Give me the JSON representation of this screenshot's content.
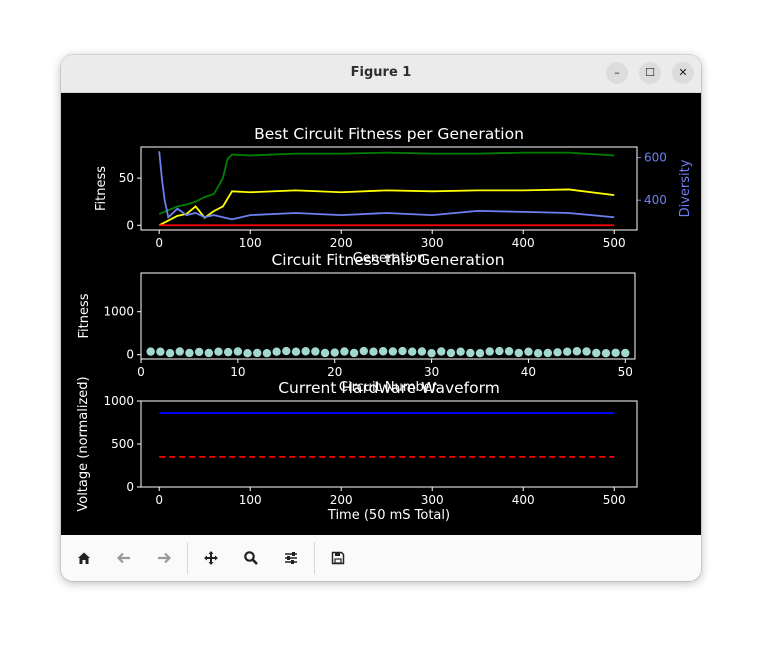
{
  "window": {
    "title": "Figure 1",
    "minimize": "–",
    "maximize": "☐",
    "close": "✕"
  },
  "toolbar": {
    "icons": [
      "home-icon",
      "back-arrow-icon",
      "forward-arrow-icon",
      "pan-move-icon",
      "zoom-icon",
      "configure-subplots-icon",
      "save-icon"
    ]
  },
  "colors": {
    "best": "#008000",
    "avg": "#ffff00",
    "worst": "#ff0000",
    "diversity": "#6e7ff0",
    "scatter": "#a2d9cf",
    "waveform": "#0000ff",
    "threshold": "#ff0000"
  },
  "chart_data": [
    {
      "type": "line",
      "title": "Best Circuit Fitness per Generation",
      "xlabel": "Generation",
      "ylabel": "Fitness",
      "y2label": "Diversity",
      "xlim": [
        -20,
        525
      ],
      "ylim": [
        -5,
        83
      ],
      "y2lim": [
        260,
        650
      ],
      "xticks": [
        0,
        100,
        200,
        300,
        400,
        500
      ],
      "yticks": [
        0,
        50
      ],
      "y2ticks": [
        400,
        600
      ],
      "series": [
        {
          "axis": "y",
          "color": "#008000",
          "x": [
            0,
            20,
            30,
            40,
            50,
            60,
            70,
            75,
            80,
            100,
            150,
            200,
            250,
            300,
            350,
            400,
            450,
            500
          ],
          "y": [
            12,
            20,
            22,
            25,
            30,
            33,
            50,
            70,
            75,
            74,
            76,
            76,
            77,
            76,
            76,
            77,
            77,
            74
          ]
        },
        {
          "axis": "y",
          "color": "#ffff00",
          "x": [
            0,
            20,
            30,
            40,
            50,
            60,
            70,
            75,
            80,
            100,
            150,
            200,
            250,
            300,
            350,
            400,
            450,
            500
          ],
          "y": [
            0,
            10,
            12,
            20,
            8,
            15,
            20,
            28,
            36,
            35,
            37,
            35,
            37,
            36,
            37,
            37,
            38,
            32
          ]
        },
        {
          "axis": "y",
          "color": "#ff0000",
          "x": [
            0,
            500
          ],
          "y": [
            0,
            0
          ]
        },
        {
          "axis": "y2",
          "color": "#6e7ff0",
          "x": [
            0,
            3,
            6,
            10,
            20,
            30,
            40,
            50,
            60,
            80,
            100,
            150,
            200,
            250,
            300,
            350,
            400,
            450,
            500
          ],
          "y": [
            630,
            500,
            400,
            320,
            360,
            330,
            340,
            320,
            330,
            310,
            330,
            340,
            330,
            340,
            330,
            350,
            345,
            340,
            320
          ]
        }
      ]
    },
    {
      "type": "scatter",
      "title": "Circuit Fitness this Generation",
      "xlabel": "Circuit Number",
      "ylabel": "Fitness",
      "xlim": [
        0,
        51
      ],
      "ylim": [
        -100,
        1900
      ],
      "xticks": [
        0,
        10,
        20,
        30,
        40,
        50
      ],
      "yticks": [
        0,
        1000
      ],
      "x": [
        1,
        2,
        3,
        4,
        5,
        6,
        7,
        8,
        9,
        10,
        11,
        12,
        13,
        14,
        15,
        16,
        17,
        18,
        19,
        20,
        21,
        22,
        23,
        24,
        25,
        26,
        27,
        28,
        29,
        30,
        31,
        32,
        33,
        34,
        35,
        36,
        37,
        38,
        39,
        40,
        41,
        42,
        43,
        44,
        45,
        46,
        47,
        48,
        49,
        50
      ],
      "y": [
        72,
        70,
        35,
        75,
        40,
        65,
        40,
        70,
        60,
        75,
        35,
        40,
        35,
        70,
        85,
        70,
        80,
        75,
        40,
        50,
        75,
        40,
        85,
        70,
        80,
        75,
        85,
        70,
        75,
        35,
        75,
        40,
        70,
        40,
        35,
        75,
        85,
        80,
        40,
        70,
        35,
        40,
        55,
        70,
        80,
        75,
        40,
        35,
        45,
        40
      ]
    },
    {
      "type": "line",
      "title": "Current Hardware Waveform",
      "xlabel": "Time (50 mS Total)",
      "ylabel": "Voltage (normalized)",
      "xlim": [
        -20,
        525
      ],
      "ylim": [
        0,
        1000
      ],
      "xticks": [
        0,
        100,
        200,
        300,
        400,
        500
      ],
      "yticks": [
        0,
        500,
        1000
      ],
      "series": [
        {
          "color": "#0000ff",
          "style": "solid",
          "x": [
            0,
            500
          ],
          "y": [
            860,
            860
          ]
        },
        {
          "color": "#ff0000",
          "style": "dashed",
          "x": [
            0,
            500
          ],
          "y": [
            350,
            350
          ]
        }
      ]
    }
  ]
}
